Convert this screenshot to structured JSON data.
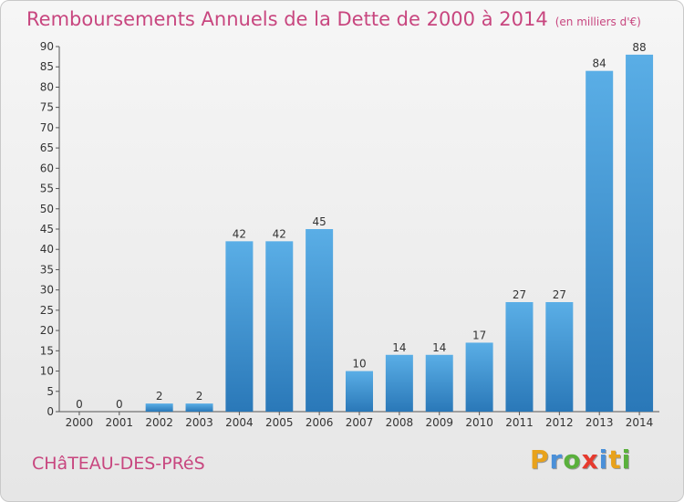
{
  "title": "Remboursements Annuels de la Dette de 2000 à 2014",
  "subtitle": "(en milliers d'€)",
  "commune": "CHâTEAU-DES-PRéS",
  "logo": {
    "letters": [
      "P",
      "r",
      "o",
      "x",
      "i",
      "t",
      "i"
    ],
    "colors": [
      "#e8a21c",
      "#4a90d9",
      "#5ab03c",
      "#e63a2e",
      "#4a90d9",
      "#e8a21c",
      "#5ab03c"
    ]
  },
  "colors": {
    "bar_light": "#5aaee6",
    "bar_dark": "#2a78b8",
    "title": "#c8467f"
  },
  "chart_data": {
    "type": "bar",
    "categories": [
      "2000",
      "2001",
      "2002",
      "2003",
      "2004",
      "2005",
      "2006",
      "2007",
      "2008",
      "2009",
      "2010",
      "2011",
      "2012",
      "2013",
      "2014"
    ],
    "values": [
      0,
      0,
      2,
      2,
      42,
      42,
      45,
      10,
      14,
      14,
      17,
      27,
      27,
      84,
      88
    ],
    "ylim": [
      0,
      90
    ],
    "yticks": [
      0,
      5,
      10,
      15,
      20,
      25,
      30,
      35,
      40,
      45,
      50,
      55,
      60,
      65,
      70,
      75,
      80,
      85,
      90
    ],
    "grid": false,
    "legend": "none"
  }
}
